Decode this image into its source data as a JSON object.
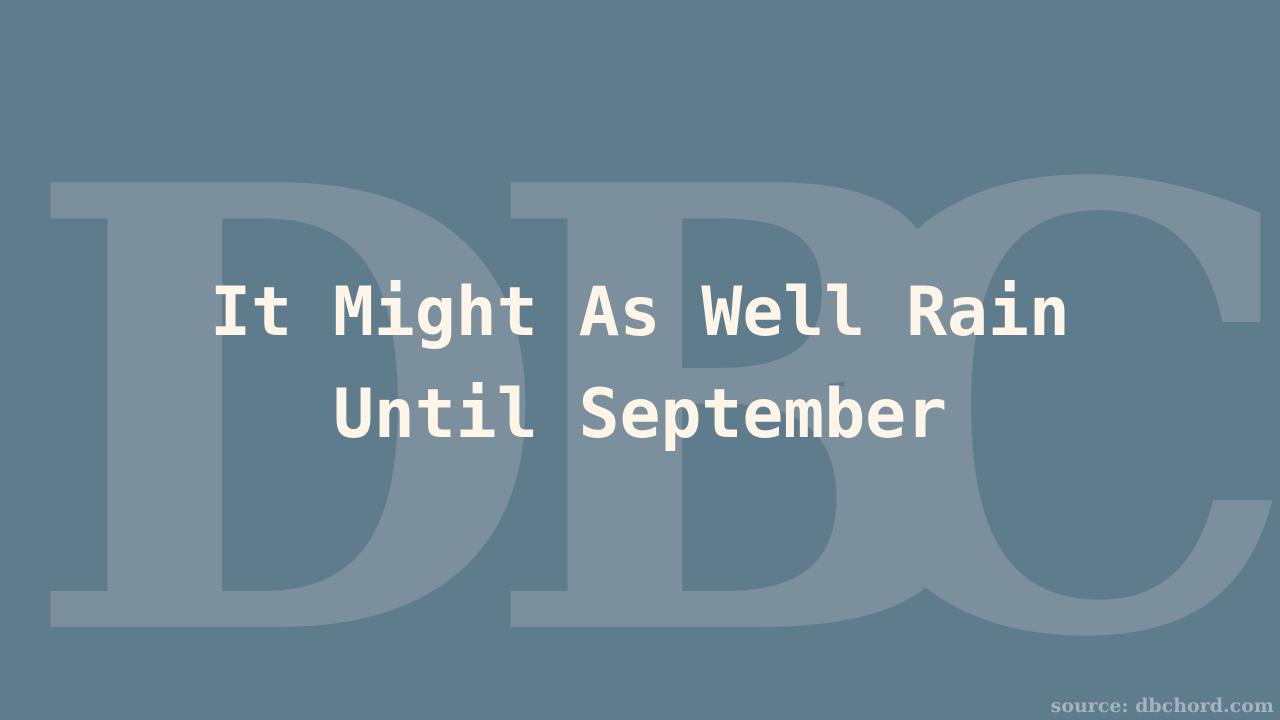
{
  "watermark": {
    "letters": [
      "D",
      "B",
      "C"
    ]
  },
  "title": {
    "line1": "It Might As Well Rain",
    "line2": "Until September"
  },
  "footer": {
    "source": "source: dbchord.com"
  },
  "colors": {
    "background": "#5f7c8c",
    "watermark": "#7b8f9c",
    "title_text": "#fdf6e8",
    "source_text": "#a4b3bd"
  }
}
